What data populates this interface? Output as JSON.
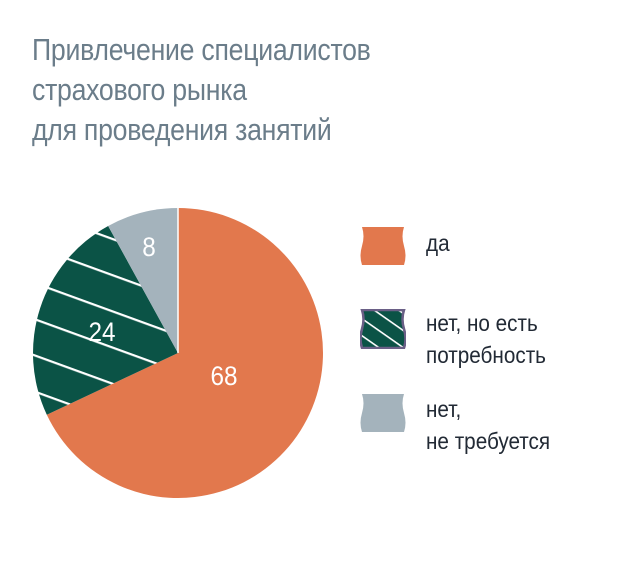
{
  "title": {
    "lines": [
      "Привлечение специалистов",
      "страхового рынка",
      "для проведения занятий"
    ],
    "color": "#6b7d8a"
  },
  "legend": {
    "items": [
      {
        "label_lines": [
          "да"
        ],
        "color": "#e2784d",
        "pattern": "solid"
      },
      {
        "label_lines": [
          "нет, но есть",
          "потребность"
        ],
        "color": "#0b5346",
        "pattern": "hatched",
        "border_color": "#6a5f86"
      },
      {
        "label_lines": [
          "нет,",
          "не требуется"
        ],
        "color": "#a4b3bc",
        "pattern": "solid"
      }
    ]
  },
  "chart_data": {
    "type": "pie",
    "title": "Привлечение специалистов страхового рынка для проведения занятий",
    "categories": [
      "да",
      "нет, но есть потребность",
      "нет, не требуется"
    ],
    "values": [
      68,
      24,
      8
    ],
    "data_labels": [
      "68",
      "24",
      "8"
    ],
    "colors": [
      "#e2784d",
      "#0b5346",
      "#a4b3bc"
    ],
    "start_angle": "12 o'clock",
    "direction": "clockwise",
    "unit": "%",
    "legend_position": "right"
  }
}
